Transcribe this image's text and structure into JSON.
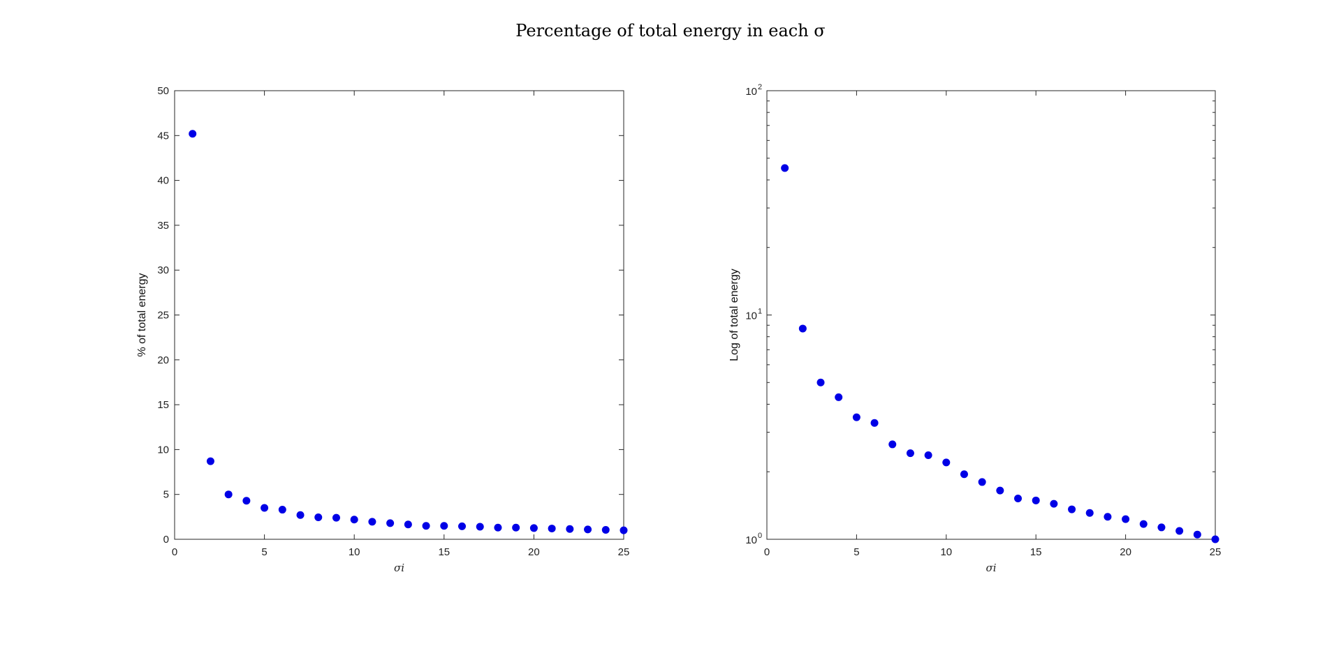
{
  "figure": {
    "suptitle": "Percentage of total energy in each σ"
  },
  "chart_data": [
    {
      "type": "scatter",
      "ylabel": "% of total energy",
      "xlabel": "σi",
      "xlim": [
        0,
        25
      ],
      "ylim": [
        0,
        50
      ],
      "yscale": "linear",
      "xticks": [
        0,
        5,
        10,
        15,
        20,
        25
      ],
      "yticks": [
        0,
        5,
        10,
        15,
        20,
        25,
        30,
        35,
        40,
        45,
        50
      ],
      "grid": false,
      "marker_color": "#0000e6",
      "x": [
        1,
        2,
        3,
        4,
        5,
        6,
        7,
        8,
        9,
        10,
        11,
        12,
        13,
        14,
        15,
        16,
        17,
        18,
        19,
        20,
        21,
        22,
        23,
        24,
        25
      ],
      "values": [
        45.2,
        8.7,
        5.0,
        4.3,
        3.5,
        3.3,
        2.7,
        2.45,
        2.4,
        2.2,
        1.95,
        1.8,
        1.65,
        1.5,
        1.5,
        1.45,
        1.4,
        1.3,
        1.3,
        1.25,
        1.2,
        1.15,
        1.1,
        1.05,
        1.0
      ]
    },
    {
      "type": "scatter",
      "ylabel": "Log of total energy",
      "xlabel": "σi",
      "xlim": [
        0,
        25
      ],
      "ylim": [
        1,
        100
      ],
      "yscale": "log",
      "xticks": [
        0,
        5,
        10,
        15,
        20,
        25
      ],
      "yticks": [
        {
          "base": "10",
          "exp": "0"
        },
        {
          "base": "10",
          "exp": "1"
        },
        {
          "base": "10",
          "exp": "2"
        }
      ],
      "grid": false,
      "marker_color": "#0000e6",
      "x": [
        1,
        2,
        3,
        4,
        5,
        6,
        7,
        8,
        9,
        10,
        11,
        12,
        13,
        14,
        15,
        16,
        17,
        18,
        19,
        20,
        21,
        22,
        23,
        24,
        25
      ],
      "values": [
        45.2,
        8.7,
        5.0,
        4.3,
        3.5,
        3.3,
        2.65,
        2.42,
        2.37,
        2.2,
        1.95,
        1.8,
        1.65,
        1.52,
        1.49,
        1.44,
        1.36,
        1.31,
        1.26,
        1.23,
        1.17,
        1.13,
        1.09,
        1.05,
        1.0
      ]
    }
  ]
}
